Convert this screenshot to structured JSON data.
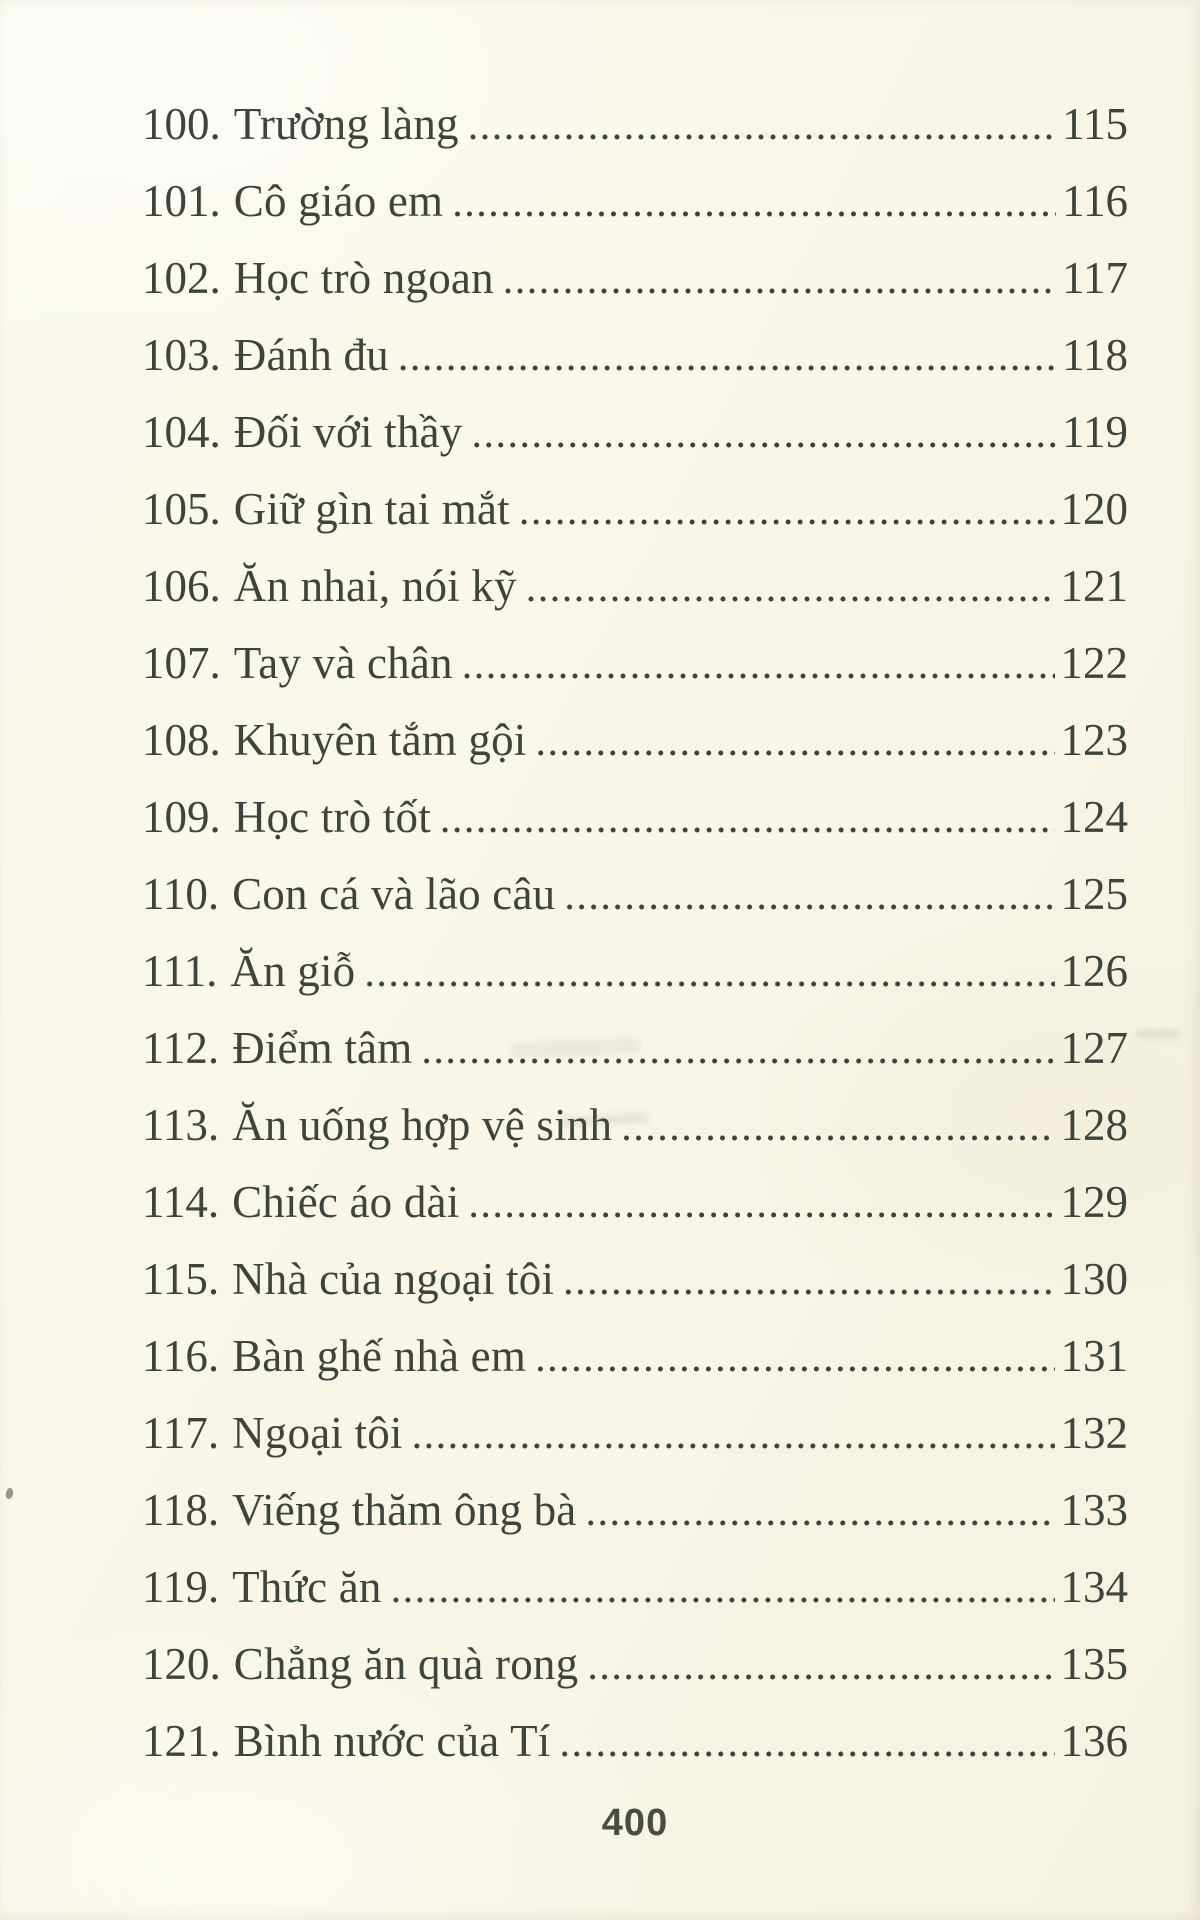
{
  "colors": {
    "paper": "#f9f6e9",
    "ink": "#3e443c",
    "footer_ink": "#484d44"
  },
  "toc": {
    "entries": [
      {
        "num": "100.",
        "title": "Trường làng",
        "page": "115"
      },
      {
        "num": "101.",
        "title": "Cô giáo em",
        "page": "116"
      },
      {
        "num": "102.",
        "title": "Học trò ngoan",
        "page": "117"
      },
      {
        "num": "103.",
        "title": "Đánh đu",
        "page": "118"
      },
      {
        "num": "104.",
        "title": "Đối với thầy",
        "page": "119"
      },
      {
        "num": "105.",
        "title": "Giữ gìn tai mắt",
        "page": "120"
      },
      {
        "num": "106.",
        "title": "Ăn nhai, nói kỹ",
        "page": "121"
      },
      {
        "num": "107.",
        "title": "Tay và chân",
        "page": "122"
      },
      {
        "num": "108.",
        "title": "Khuyên tắm gội",
        "page": "123"
      },
      {
        "num": "109.",
        "title": "Học trò tốt",
        "page": "124"
      },
      {
        "num": "110.",
        "title": "Con cá và lão câu",
        "page": "125"
      },
      {
        "num": "111.",
        "title": "Ăn giỗ",
        "page": "126"
      },
      {
        "num": "112.",
        "title": "Điểm tâm",
        "page": "127"
      },
      {
        "num": "113.",
        "title": "Ăn uống hợp vệ sinh",
        "page": "128"
      },
      {
        "num": "114.",
        "title": "Chiếc áo dài",
        "page": "129"
      },
      {
        "num": "115.",
        "title": "Nhà của ngoại tôi",
        "page": "130"
      },
      {
        "num": "116.",
        "title": "Bàn ghế nhà em",
        "page": "131"
      },
      {
        "num": "117.",
        "title": "Ngoại tôi",
        "page": "132"
      },
      {
        "num": "118.",
        "title": "Viếng thăm ông bà",
        "page": "133"
      },
      {
        "num": "119.",
        "title": "Thức ăn",
        "page": "134"
      },
      {
        "num": "120.",
        "title": "Chẳng ăn quà rong",
        "page": "135"
      },
      {
        "num": "121.",
        "title": "Bình nước của Tí",
        "page": "136"
      }
    ]
  },
  "footer": {
    "page_number": "400"
  }
}
